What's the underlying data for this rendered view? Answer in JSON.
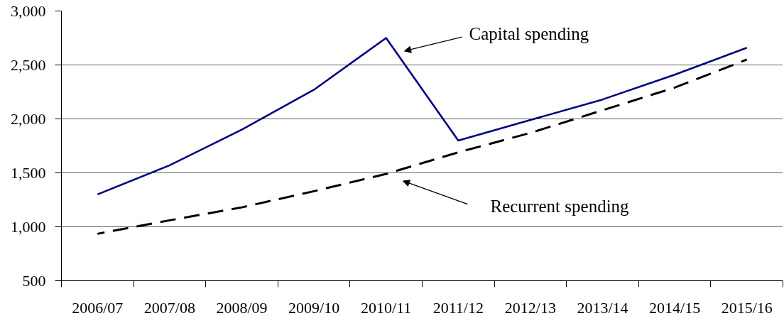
{
  "chart_data": {
    "type": "line",
    "categories": [
      "2006/07",
      "2007/08",
      "2008/09",
      "2009/10",
      "2010/11",
      "2011/12",
      "2012/13",
      "2013/14",
      "2014/15",
      "2015/16"
    ],
    "series": [
      {
        "color": "#000080",
        "line_style": "solid",
        "values": [
          1300,
          1570,
          1900,
          2270,
          2750,
          1800,
          1990,
          2180,
          2410,
          2660
        ]
      },
      {
        "color": "#000000",
        "line_style": "dashed",
        "values": [
          935,
          1060,
          1180,
          1330,
          1490,
          1690,
          1870,
          2080,
          2290,
          2550
        ]
      }
    ],
    "ylim": [
      500,
      3000
    ],
    "yticks": [
      500,
      {
        "value": 1000,
        "label": "1,000"
      },
      {
        "value": 1500,
        "label": "1,500"
      },
      {
        "value": 2000,
        "label": "2,000"
      },
      {
        "value": 2500,
        "label": "2,500"
      },
      {
        "value": 3000,
        "label": "3,000"
      }
    ],
    "grid": "y",
    "annotations": [
      "Capital spending",
      "Recurrent spending"
    ]
  }
}
